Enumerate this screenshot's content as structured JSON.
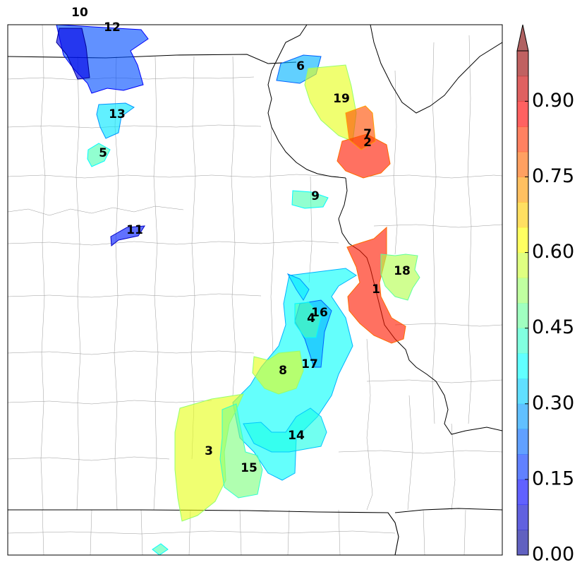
{
  "map": {
    "title": "",
    "objects": [
      {
        "id": "1",
        "label": "1",
        "value": 0.85
      },
      {
        "id": "2",
        "label": "2",
        "value": 0.85
      },
      {
        "id": "3",
        "label": "3",
        "value": 0.6
      },
      {
        "id": "4",
        "label": "4",
        "value": 0.45
      },
      {
        "id": "5",
        "label": "5",
        "value": 0.45
      },
      {
        "id": "6",
        "label": "6",
        "value": 0.3
      },
      {
        "id": "7",
        "label": "7",
        "value": 0.8
      },
      {
        "id": "8",
        "label": "8",
        "value": 0.6
      },
      {
        "id": "9",
        "label": "9",
        "value": 0.45
      },
      {
        "id": "10",
        "label": "10",
        "value": 0.1
      },
      {
        "id": "11",
        "label": "11",
        "value": 0.15
      },
      {
        "id": "12",
        "label": "12",
        "value": 0.2
      },
      {
        "id": "13",
        "label": "13",
        "value": 0.35
      },
      {
        "id": "14",
        "label": "14",
        "value": 0.4
      },
      {
        "id": "15",
        "label": "15",
        "value": 0.5
      },
      {
        "id": "16",
        "label": "16",
        "value": 0.3
      },
      {
        "id": "17",
        "label": "17",
        "value": 0.35
      },
      {
        "id": "18",
        "label": "18",
        "value": 0.55
      },
      {
        "id": "19",
        "label": "19",
        "value": 0.6
      }
    ]
  },
  "colorbar": {
    "min": 0.0,
    "max": 1.0,
    "ticks": [
      "0.00",
      "0.15",
      "0.30",
      "0.45",
      "0.60",
      "0.75",
      "0.90"
    ],
    "extend": "max",
    "colormap": [
      "#00007f",
      "#0000ff",
      "#0080ff",
      "#00ffff",
      "#80ff80",
      "#ffff00",
      "#ff8000",
      "#ff0000",
      "#800000"
    ]
  }
}
